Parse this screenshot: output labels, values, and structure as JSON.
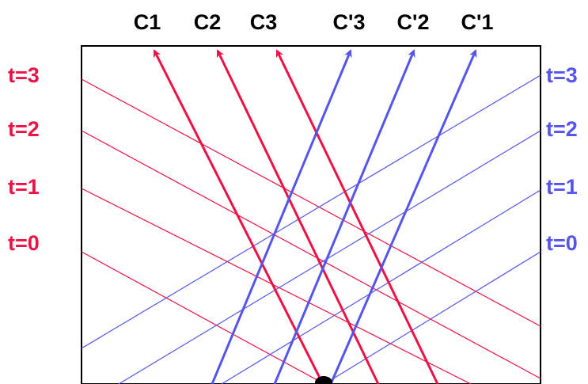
{
  "colors": {
    "red": "#ee1144",
    "blue": "#5555ee",
    "black": "#000000",
    "frame": "#000000"
  },
  "worldlines": {
    "red": [
      {
        "label": "C1"
      },
      {
        "label": "C2"
      },
      {
        "label": "C3"
      }
    ],
    "blue": [
      {
        "label": "C'3"
      },
      {
        "label": "C'2"
      },
      {
        "label": "C'1"
      }
    ]
  },
  "time_lines": {
    "red": [
      {
        "label": "t=3"
      },
      {
        "label": "t=2"
      },
      {
        "label": "t=1"
      },
      {
        "label": "t=0"
      }
    ],
    "blue": [
      {
        "label": "t=3"
      },
      {
        "label": "t=2"
      },
      {
        "label": "t=1"
      },
      {
        "label": "t=0"
      }
    ]
  }
}
